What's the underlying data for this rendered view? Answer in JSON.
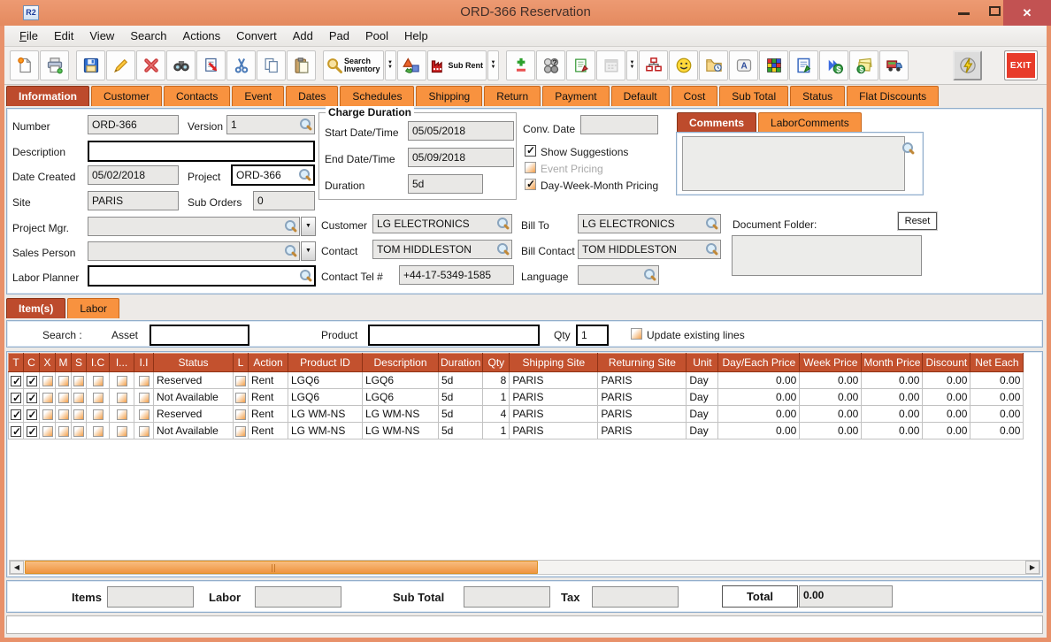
{
  "window": {
    "title": "ORD-366 Reservation",
    "app_badge": "R2",
    "controls": {
      "minimize": "–",
      "close": "✕"
    }
  },
  "menu": {
    "items": [
      "File",
      "Edit",
      "View",
      "Search",
      "Actions",
      "Convert",
      "Add",
      "Pad",
      "Pool",
      "Help"
    ]
  },
  "toolbar": {
    "groups": [
      [
        "new-document",
        "print"
      ],
      [
        "save",
        "edit",
        "delete",
        "find",
        "export-document",
        "cut",
        "copy",
        "paste"
      ],
      [
        "search-inventory",
        "3d-shapes",
        "sub-rent"
      ],
      [
        "add-remove",
        "team-query",
        "notepad-edit",
        "calendar",
        "org-chart",
        "smiley",
        "folder-history",
        "keyboard-key",
        "color-cube",
        "document-edit",
        "convert-currency",
        "notes-currency",
        "truck"
      ],
      [
        "lightning"
      ],
      [
        "exit"
      ]
    ],
    "dropdown_after": [
      "search-inventory",
      "sub-rent",
      "calendar"
    ],
    "labels": {
      "search_inventory": "Search Inventory",
      "sub_rent": "Sub Rent",
      "exit": "EXIT"
    }
  },
  "main_tabs": {
    "selected": "Information",
    "items": [
      "Information",
      "Customer",
      "Contacts",
      "Event",
      "Dates",
      "Schedules",
      "Shipping",
      "Return",
      "Payment",
      "Default",
      "Cost",
      "Sub Total",
      "Status",
      "Flat Discounts"
    ]
  },
  "info": {
    "number": {
      "label": "Number",
      "value": "ORD-366"
    },
    "version": {
      "label": "Version",
      "value": "1"
    },
    "description": {
      "label": "Description",
      "value": ""
    },
    "date_created": {
      "label": "Date Created",
      "value": "05/02/2018"
    },
    "project": {
      "label": "Project",
      "value": "ORD-366"
    },
    "site": {
      "label": "Site",
      "value": "PARIS"
    },
    "sub_orders": {
      "label": "Sub Orders",
      "value": "0"
    },
    "project_mgr": {
      "label": "Project Mgr.",
      "value": ""
    },
    "sales_person": {
      "label": "Sales Person",
      "value": ""
    },
    "labor_planner": {
      "label": "Labor Planner",
      "value": ""
    },
    "charge_duration": {
      "legend": "Charge Duration",
      "start": {
        "label": "Start Date/Time",
        "value": "05/05/2018"
      },
      "end": {
        "label": "End Date/Time",
        "value": "05/09/2018"
      },
      "duration": {
        "label": "Duration",
        "value": "5d"
      }
    },
    "conv_date": {
      "label": "Conv. Date",
      "value": ""
    },
    "show_suggestions": {
      "label": "Show Suggestions",
      "checked": true
    },
    "event_pricing": {
      "label": "Event Pricing",
      "checked": false
    },
    "day_week_month": {
      "label": "Day-Week-Month Pricing",
      "checked": true
    },
    "customer": {
      "label": "Customer",
      "value": "LG ELECTRONICS"
    },
    "bill_to": {
      "label": "Bill To",
      "value": "LG ELECTRONICS"
    },
    "contact": {
      "label": "Contact",
      "value": "TOM HIDDLESTON"
    },
    "bill_contact": {
      "label": "Bill Contact",
      "value": "TOM HIDDLESTON"
    },
    "contact_tel": {
      "label": "Contact Tel #",
      "value": "+44-17-5349-1585"
    },
    "language": {
      "label": "Language",
      "value": ""
    },
    "comments_tabs": {
      "selected": "Comments",
      "items": [
        "Comments",
        "LaborComments"
      ]
    },
    "comments_value": "",
    "document_folder": {
      "label": "Document Folder:",
      "reset_label": "Reset",
      "value": ""
    }
  },
  "items_section": {
    "tabs": {
      "selected": "Item(s)",
      "items": [
        "Item(s)",
        "Labor"
      ]
    },
    "search_label": "Search :",
    "asset": {
      "label": "Asset",
      "value": ""
    },
    "product": {
      "label": "Product",
      "value": ""
    },
    "qty": {
      "label": "Qty",
      "value": "1"
    },
    "update_existing": {
      "label": "Update existing lines",
      "checked": false
    }
  },
  "table": {
    "columns": [
      "T",
      "C",
      "X",
      "M",
      "S",
      "I.C",
      "I...",
      "I.I",
      "Status",
      "L",
      "Action",
      "Product ID",
      "Description",
      "Duration",
      "Qty",
      "Shipping Site",
      "Returning Site",
      "Unit",
      "Day/Each Price",
      "Week Price",
      "Month Price",
      "Discount",
      "Net Each"
    ],
    "rows": [
      {
        "checks": [
          true,
          true,
          false,
          false,
          false,
          false,
          false,
          false
        ],
        "status": "Reserved",
        "l_checked": false,
        "action": "Rent",
        "product_id": "LGQ6",
        "description": "LGQ6",
        "duration": "5d",
        "qty": "8",
        "shipping_site": "PARIS",
        "returning_site": "PARIS",
        "unit": "Day",
        "day_each_price": "0.00",
        "week_price": "0.00",
        "month_price": "0.00",
        "discount": "0.00",
        "net_each": "0.00",
        "state": "normal"
      },
      {
        "checks": [
          true,
          true,
          false,
          false,
          false,
          false,
          false,
          false
        ],
        "status": "Not Available",
        "l_checked": false,
        "action": "Rent",
        "product_id": "LGQ6",
        "description": "LGQ6",
        "duration": "5d",
        "qty": "1",
        "shipping_site": "PARIS",
        "returning_site": "PARIS",
        "unit": "Day",
        "day_each_price": "0.00",
        "week_price": "0.00",
        "month_price": "0.00",
        "discount": "0.00",
        "net_each": "0.00",
        "state": "unavailable_selected"
      },
      {
        "checks": [
          true,
          true,
          false,
          false,
          false,
          false,
          false,
          false
        ],
        "status": "Reserved",
        "l_checked": false,
        "action": "Rent",
        "product_id": "LG WM-NS",
        "description": "LG WM-NS",
        "duration": "5d",
        "qty": "4",
        "shipping_site": "PARIS",
        "returning_site": "PARIS",
        "unit": "Day",
        "day_each_price": "0.00",
        "week_price": "0.00",
        "month_price": "0.00",
        "discount": "0.00",
        "net_each": "0.00",
        "state": "normal"
      },
      {
        "checks": [
          true,
          true,
          false,
          false,
          false,
          false,
          false,
          false
        ],
        "status": "Not Available",
        "l_checked": false,
        "action": "Rent",
        "product_id": "LG WM-NS",
        "description": "LG WM-NS",
        "duration": "5d",
        "qty": "1",
        "shipping_site": "PARIS",
        "returning_site": "PARIS",
        "unit": "Day",
        "day_each_price": "0.00",
        "week_price": "0.00",
        "month_price": "0.00",
        "discount": "0.00",
        "net_each": "0.00",
        "state": "unavailable"
      }
    ]
  },
  "footer": {
    "items": {
      "label": "Items",
      "value": ""
    },
    "labor": {
      "label": "Labor",
      "value": ""
    },
    "sub_total": {
      "label": "Sub Total",
      "value": ""
    },
    "tax": {
      "label": "Tax",
      "value": ""
    },
    "total": {
      "label": "Total",
      "value": "0.00"
    }
  }
}
